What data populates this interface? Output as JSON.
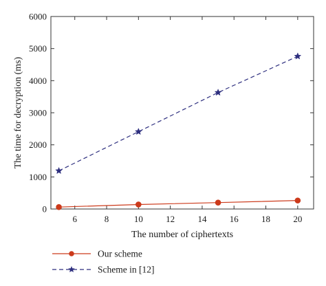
{
  "chart_data": {
    "type": "line",
    "title": "",
    "xlabel": "The number of ciphertexts",
    "ylabel": "The time for decryption (ms)",
    "xlim": [
      4.5,
      21
    ],
    "ylim": [
      0,
      6000
    ],
    "x_ticks": [
      6,
      8,
      10,
      12,
      14,
      16,
      18,
      20
    ],
    "y_ticks": [
      0,
      1000,
      2000,
      3000,
      4000,
      5000,
      6000
    ],
    "grid": false,
    "legend_position": "bottom-left, below plot",
    "x": [
      5,
      10,
      15,
      20
    ],
    "series": [
      {
        "name": "Our scheme",
        "values": [
          60,
          140,
          200,
          265
        ],
        "color": "#cc3a1b",
        "line_style": "solid",
        "marker": "circle"
      },
      {
        "name": "Scheme in [12]",
        "values": [
          1190,
          2410,
          3630,
          4760
        ],
        "color": "#2e2f7f",
        "line_style": "dashed",
        "marker": "star"
      }
    ]
  }
}
